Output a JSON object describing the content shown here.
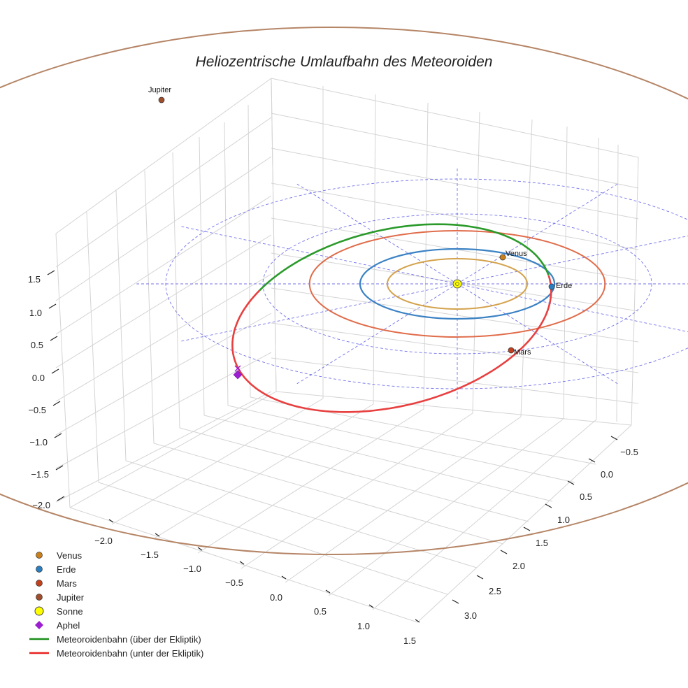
{
  "chart_data": {
    "type": "3d-orbit",
    "title": "Heliozentrische Umlaufbahn des Meteoroiden",
    "axes": {
      "x": {
        "ticks": [
          -2.0,
          -1.5,
          -1.0,
          -0.5,
          0.0,
          0.5,
          1.0,
          1.5
        ],
        "tick_labels": [
          "−2.0",
          "−1.5",
          "−1.0",
          "−0.5",
          "0.0",
          "0.5",
          "1.0",
          "1.5"
        ]
      },
      "y": {
        "ticks": [
          -0.5,
          0.0,
          0.5,
          1.0,
          1.5,
          2.0,
          2.5,
          3.0
        ],
        "tick_labels": [
          "−0.5",
          "0.0",
          "0.5",
          "1.0",
          "1.5",
          "2.0",
          "2.5",
          "3.0"
        ]
      },
      "z": {
        "ticks": [
          -2.0,
          -1.5,
          -1.0,
          -0.5,
          0.0,
          0.5,
          1.0,
          1.5
        ],
        "tick_labels": [
          "−2.0",
          "−1.5",
          "−1.0",
          "−0.5",
          "0.0",
          "0.5",
          "1.0",
          "1.5"
        ]
      },
      "grid": true
    },
    "orbits": [
      {
        "name": "Venus",
        "radius_au": 0.72,
        "color": "#d4a24c"
      },
      {
        "name": "Erde",
        "radius_au": 1.0,
        "color": "#3b82c4"
      },
      {
        "name": "Mars",
        "radius_au": 1.52,
        "color": "#e06c4a"
      },
      {
        "name": "Jupiter",
        "radius_au": 5.2,
        "color": "#b58566"
      }
    ],
    "planets": [
      {
        "name": "Venus",
        "label": "Venus",
        "color": "#c9801c"
      },
      {
        "name": "Erde",
        "label": "Erde",
        "color": "#2b7fc1"
      },
      {
        "name": "Mars",
        "label": "Mars",
        "color": "#c2401c"
      },
      {
        "name": "Jupiter",
        "label": "Jupiter",
        "color": "#a04d2c"
      }
    ],
    "sun": {
      "name": "Sonne",
      "color": "#ffff00"
    },
    "meteoroid": {
      "perihelion_au": 1.0,
      "aphelion_au": 2.4,
      "above_color": "#2a9a2a",
      "below_color": "#e84040",
      "aphel_color": "#9b1fd1"
    },
    "ecliptic_grid": {
      "rings_au": [
        1.0,
        2.0,
        3.0
      ],
      "color": "#5a5ae6"
    },
    "legend": [
      {
        "key": "venus",
        "label": "Venus",
        "marker": "circle",
        "color": "#c9801c"
      },
      {
        "key": "erde",
        "label": "Erde",
        "marker": "circle",
        "color": "#2b7fc1"
      },
      {
        "key": "mars",
        "label": "Mars",
        "marker": "circle",
        "color": "#c2401c"
      },
      {
        "key": "jupiter",
        "label": "Jupiter",
        "marker": "circle",
        "color": "#a04d2c"
      },
      {
        "key": "sonne",
        "label": "Sonne",
        "marker": "sun",
        "color": "#ffff00"
      },
      {
        "key": "aphel",
        "label": "Aphel",
        "marker": "diamond",
        "color": "#9b1fd1"
      },
      {
        "key": "above",
        "label": "Meteoroidenbahn (über der Ekliptik)",
        "marker": "line",
        "color": "#1a8f1a"
      },
      {
        "key": "below",
        "label": "Meteoroidenbahn (unter der Ekliptik)",
        "marker": "line",
        "color": "#e82020"
      }
    ]
  }
}
